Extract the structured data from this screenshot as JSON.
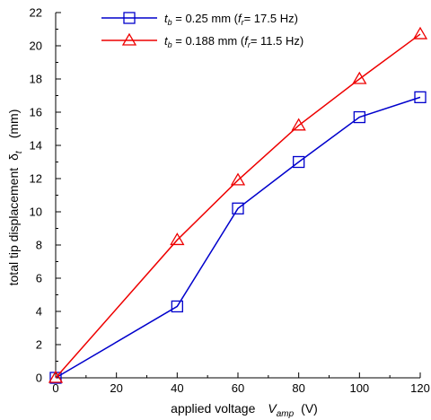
{
  "chart_data": {
    "type": "line",
    "x": [
      0,
      20,
      40,
      60,
      80,
      100,
      120
    ],
    "xlim": [
      0,
      120
    ],
    "ylim": [
      0,
      22
    ],
    "x_ticks": [
      "0",
      "20",
      "40",
      "60",
      "80",
      "100",
      "120"
    ],
    "y_ticks": [
      "0",
      "2",
      "4",
      "6",
      "8",
      "10",
      "12",
      "14",
      "16",
      "18",
      "20",
      "22"
    ],
    "xlabel": {
      "main": "applied voltage",
      "symbol": "V",
      "subscript": "amp",
      "unit": "(V)"
    },
    "ylabel": {
      "main": "total tip displacement",
      "symbol": "δ",
      "subscript": "t",
      "unit": "(mm)"
    },
    "grid": false,
    "legend_position": "top-center",
    "series": [
      {
        "name": "t_b = 0.25 mm (f_r = 17.5 Hz)",
        "legend": {
          "sym": "t",
          "sub": "b",
          "mid": " = 0.25 mm (",
          "fsym": "f",
          "fsub": "r",
          "tail": "= 17.5 Hz)"
        },
        "color": "#0000cc",
        "marker": "square",
        "points": [
          [
            0,
            0
          ],
          [
            40,
            4.3
          ],
          [
            60,
            10.2
          ],
          [
            80,
            13.0
          ],
          [
            100,
            15.7
          ],
          [
            120,
            16.9
          ]
        ]
      },
      {
        "name": "t_b = 0.188 mm (f_r = 11.5 Hz)",
        "legend": {
          "sym": "t",
          "sub": "b",
          "mid": " = 0.188 mm (",
          "fsym": "f",
          "fsub": "r",
          "tail": "= 11.5 Hz)"
        },
        "color": "#ee0000",
        "marker": "triangle",
        "points": [
          [
            0,
            0
          ],
          [
            40,
            8.3
          ],
          [
            60,
            11.9
          ],
          [
            80,
            15.2
          ],
          [
            100,
            18.0
          ],
          [
            120,
            20.7
          ]
        ]
      }
    ]
  }
}
